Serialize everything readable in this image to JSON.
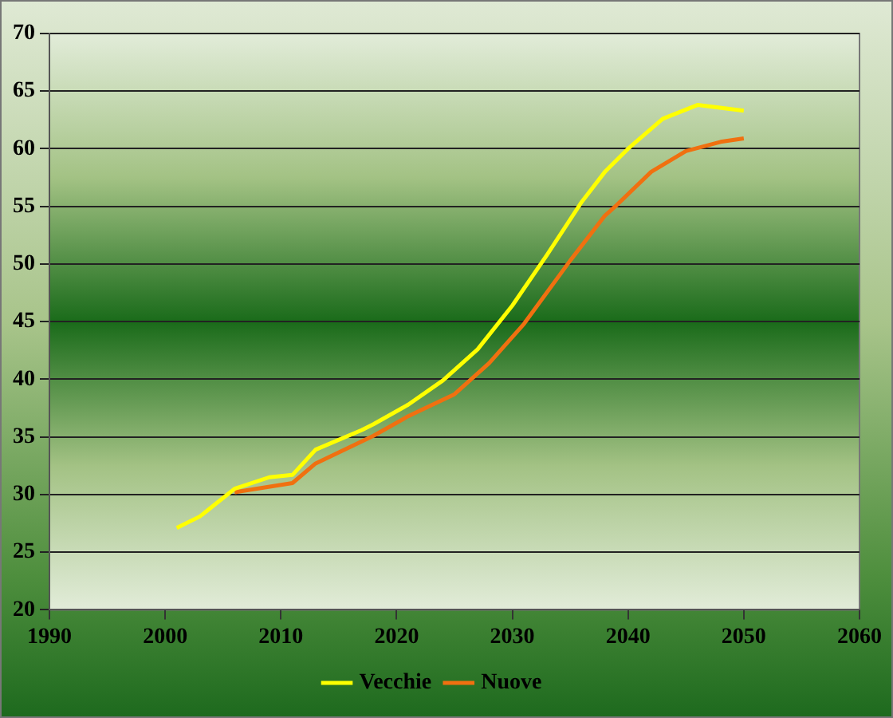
{
  "chart_data": {
    "type": "line",
    "xlim": [
      1990,
      2060
    ],
    "xticks": [
      1990,
      2000,
      2010,
      2020,
      2030,
      2040,
      2050,
      2060
    ],
    "ylim": [
      20,
      70
    ],
    "yticks": [
      20,
      25,
      30,
      35,
      40,
      45,
      50,
      55,
      60,
      65,
      70
    ],
    "grid": "y",
    "legend": "bottom",
    "marker": "none",
    "line_style": "solid",
    "series": [
      {
        "name": "Vecchie",
        "color": "#ffff00",
        "x": [
          2001,
          2003,
          2005,
          2006,
          2009,
          2011,
          2013,
          2017,
          2018,
          2021,
          2024,
          2027,
          2030,
          2033,
          2036,
          2038,
          2040,
          2043,
          2046,
          2050
        ],
        "values": [
          27.1,
          28.1,
          29.7,
          30.5,
          31.5,
          31.7,
          33.9,
          35.6,
          36.1,
          37.8,
          39.9,
          42.6,
          46.4,
          50.8,
          55.4,
          58.0,
          60.0,
          62.6,
          63.8,
          63.3
        ]
      },
      {
        "name": "Nuove",
        "color": "#f07010",
        "x": [
          2006,
          2011,
          2013,
          2018,
          2021,
          2025,
          2028,
          2031,
          2035,
          2038,
          2039,
          2042,
          2045,
          2048,
          2050
        ],
        "values": [
          30.2,
          31.0,
          32.7,
          35.1,
          36.8,
          38.7,
          41.4,
          44.8,
          50.3,
          54.2,
          55.1,
          58.0,
          59.8,
          60.6,
          60.9
        ]
      }
    ]
  }
}
